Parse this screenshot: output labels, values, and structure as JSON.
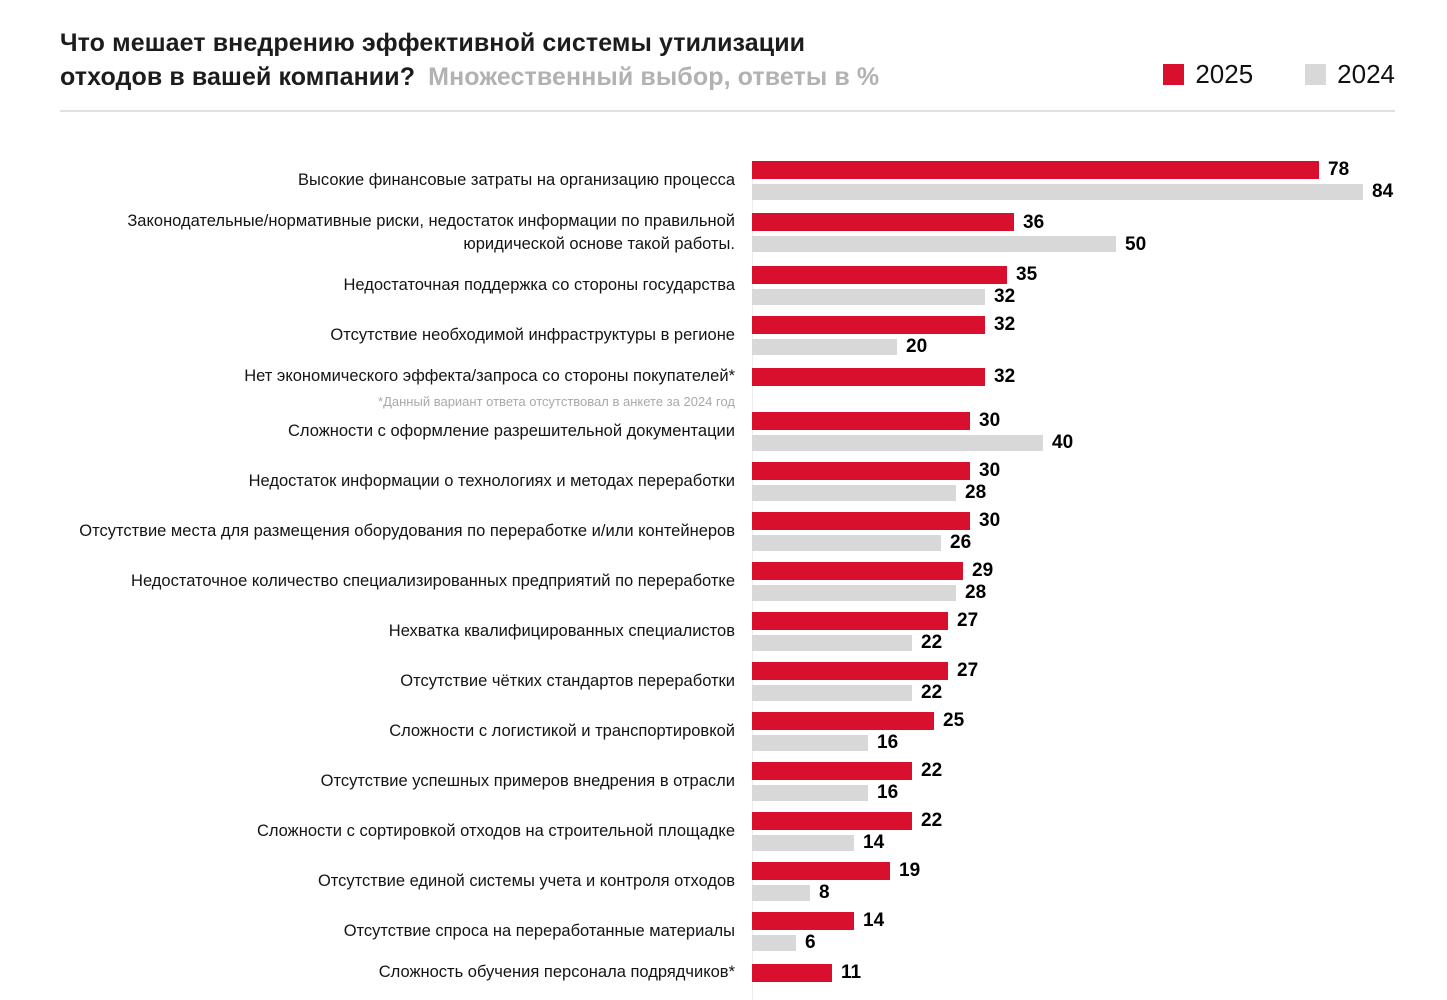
{
  "header": {
    "title_line1": "Что мешает внедрению эффективной системы утилизации",
    "title_line2": "отходов в вашей компании?",
    "subtitle": "Множественный выбор, ответы в %"
  },
  "legend": {
    "items": [
      {
        "label": "2025",
        "color": "#d8102d"
      },
      {
        "label": "2024",
        "color": "#d8d8d8"
      }
    ]
  },
  "chart_data": {
    "type": "bar",
    "orientation": "horizontal",
    "title": "Что мешает внедрению эффективной системы утилизации отходов в вашей компании?",
    "subtitle": "Множественный выбор, ответы в %",
    "value_unit": "%",
    "legend_position": "top-right",
    "grid": false,
    "xlim": [
      0,
      84
    ],
    "categories": [
      "Высокие финансовые затраты на организацию процесса",
      "Законодательные/нормативные риски, недостаток информации по правильной юридической основе такой работы.",
      "Недостаточная поддержка со стороны государства",
      "Отсутствие необходимой инфраструктуры в регионе",
      "Нет экономического эффекта/запроса со стороны покупателей*",
      "Сложности с оформление разрешительной документации",
      "Недостаток информации о технологиях и методах переработки",
      "Отсутствие места для размещения оборудования по переработке и/или контейнеров",
      "Недостаточное количество специализированных предприятий по переработке",
      "Нехватка квалифицированных специалистов",
      "Отсутствие чётких стандартов переработки",
      "Сложности с логистикой и транспортировкой",
      "Отсутствие успешных примеров внедрения в отрасли",
      "Сложности с сортировкой отходов на строительной площадке",
      "Отсутствие единой системы учета и контроля отходов",
      "Отсутствие спроса на переработанные материалы",
      "Сложность обучения персонала подрядчиков*"
    ],
    "series": [
      {
        "name": "2025",
        "color": "#d8102d",
        "values": [
          78,
          36,
          35,
          32,
          32,
          30,
          30,
          30,
          29,
          27,
          27,
          25,
          22,
          22,
          19,
          14,
          11
        ]
      },
      {
        "name": "2024",
        "color": "#d8d8d8",
        "values": [
          84,
          50,
          32,
          20,
          null,
          40,
          28,
          26,
          28,
          22,
          22,
          16,
          16,
          14,
          8,
          6,
          null
        ]
      }
    ],
    "notes": [
      {
        "row": 4,
        "text": "*Данный вариант ответа отсутствовал в анкете за 2024 год"
      }
    ]
  }
}
